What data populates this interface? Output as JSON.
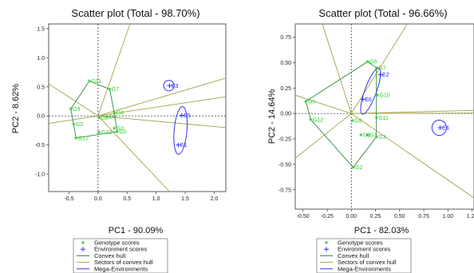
{
  "colors": {
    "genotype": "#33cc33",
    "environment": "#2222ee",
    "hull": "#2a8a3a",
    "sectors": "#a3a24a",
    "mega": "#3333ee",
    "zero_line": "#222222"
  },
  "chart_data": [
    {
      "type": "scatter",
      "title": "Scatter plot (Total - 98.70%)",
      "xlabel": "PC1 - 90.09%",
      "ylabel": "PC2 - 8.62%",
      "xlim": [
        -0.85,
        2.2
      ],
      "ylim": [
        -1.3,
        1.58
      ],
      "xticks": [
        -0.5,
        0.0,
        0.5,
        1.0,
        1.5,
        2.0
      ],
      "yticks": [
        -1.0,
        -0.5,
        0.0,
        0.5,
        1.0,
        1.5
      ],
      "xtick_labels": [
        "-0.5",
        "0.0",
        "0.5",
        "1.0",
        "1.5",
        "2.0"
      ],
      "ytick_labels": [
        "-1.0",
        "-0.5",
        "0.0",
        "0.5",
        "1.0",
        "1.5"
      ],
      "genotypes": [
        {
          "name": "G11",
          "x": -0.15,
          "y": 0.6
        },
        {
          "name": "G7",
          "x": 0.2,
          "y": 0.46
        },
        {
          "name": "G9",
          "x": -0.47,
          "y": 0.12
        },
        {
          "name": "G4",
          "x": 0.28,
          "y": 0.06
        },
        {
          "name": "G6",
          "x": 0.15,
          "y": -0.01
        },
        {
          "name": "G8",
          "x": 0.02,
          "y": -0.03
        },
        {
          "name": "G2",
          "x": -0.42,
          "y": -0.14
        },
        {
          "name": "G3",
          "x": 0.28,
          "y": -0.21
        },
        {
          "name": "G10",
          "x": 0.02,
          "y": -0.28
        },
        {
          "name": "G5",
          "x": 0.33,
          "y": -0.27
        },
        {
          "name": "G12",
          "x": -0.38,
          "y": -0.38
        }
      ],
      "environments": [
        {
          "name": "E3",
          "x": 1.23,
          "y": 0.52
        },
        {
          "name": "E5",
          "x": 1.44,
          "y": 0.01
        },
        {
          "name": "E1",
          "x": 1.38,
          "y": -0.5
        }
      ],
      "hull": [
        "G11",
        "G7",
        "G4",
        "G5",
        "G12",
        "G2",
        "G9"
      ],
      "sector_rays": [
        {
          "x": 0.55,
          "y": 1.58
        },
        {
          "x": 2.2,
          "y": 0.65
        },
        {
          "x": 2.2,
          "y": 0.33
        },
        {
          "x": 2.2,
          "y": -0.2
        },
        {
          "x": 1.23,
          "y": -1.3
        },
        {
          "x": -0.85,
          "y": 0.55
        },
        {
          "x": -0.85,
          "y": -0.13
        }
      ],
      "mega_environments": [
        {
          "cx": 1.22,
          "cy": 0.52,
          "rx": 0.09,
          "ry": 0.09,
          "rot": 0
        },
        {
          "cx": 1.42,
          "cy": -0.25,
          "rx": 0.11,
          "ry": 0.41,
          "rot": 5
        }
      ]
    },
    {
      "type": "scatter",
      "title": "Scatter plot (Total - 96.66%)",
      "xlabel": "PC1 - 82.03%",
      "ylabel": "PC2 - 14.64%",
      "xlim": [
        -0.58,
        1.27
      ],
      "ylim": [
        -0.94,
        0.88
      ],
      "xticks": [
        -0.5,
        -0.25,
        0.0,
        0.25,
        0.5,
        0.75,
        1.0,
        1.25
      ],
      "yticks": [
        -0.75,
        -0.5,
        -0.25,
        0.0,
        0.25,
        0.5,
        0.75
      ],
      "xtick_labels": [
        "-0.50",
        "-0.25",
        "0.00",
        "0.25",
        "0.50",
        "0.75",
        "1.00",
        "1.25"
      ],
      "ytick_labels": [
        "-0.75",
        "-0.50",
        "-0.25",
        "0.00",
        "0.25",
        "0.50",
        "0.75"
      ],
      "genotypes": [
        {
          "name": "G6",
          "x": 0.17,
          "y": 0.51
        },
        {
          "name": "G7",
          "x": 0.26,
          "y": 0.45
        },
        {
          "name": "G5",
          "x": -0.47,
          "y": 0.12
        },
        {
          "name": "G10",
          "x": 0.27,
          "y": 0.18
        },
        {
          "name": "G12",
          "x": -0.42,
          "y": -0.06
        },
        {
          "name": "G11",
          "x": 0.26,
          "y": -0.04
        },
        {
          "name": "G9",
          "x": 0.01,
          "y": -0.07
        },
        {
          "name": "G8",
          "x": 0.1,
          "y": -0.21
        },
        {
          "name": "G1",
          "x": 0.17,
          "y": -0.21
        },
        {
          "name": "G3",
          "x": 0.26,
          "y": -0.23
        },
        {
          "name": "G2",
          "x": 0.02,
          "y": -0.53
        }
      ],
      "environments": [
        {
          "name": "E4",
          "x": 0.92,
          "y": -0.14
        },
        {
          "name": "E2",
          "x": 0.3,
          "y": 0.38
        },
        {
          "name": "E6",
          "x": 0.12,
          "y": 0.14
        }
      ],
      "hull": [
        "G6",
        "G7",
        "G3",
        "G2",
        "G12",
        "G5"
      ],
      "sector_rays": [
        {
          "x": 0.58,
          "y": 0.88
        },
        {
          "x": 1.27,
          "y": 0.03
        },
        {
          "x": 1.27,
          "y": 0.005
        },
        {
          "x": 1.27,
          "y": -0.83
        },
        {
          "x": -0.58,
          "y": 0.18
        },
        {
          "x": -0.58,
          "y": -0.44
        },
        {
          "x": -0.3,
          "y": 0.88
        }
      ],
      "mega_environments": [
        {
          "cx": 0.91,
          "cy": -0.14,
          "rx": 0.075,
          "ry": 0.075,
          "rot": 0
        },
        {
          "cx": 0.2,
          "cy": 0.22,
          "rx": 0.06,
          "ry": 0.24,
          "rot": 20
        }
      ]
    }
  ],
  "legend": [
    {
      "symbol": "star",
      "label": "Genotype scores"
    },
    {
      "symbol": "plus",
      "label": "Environment scores"
    },
    {
      "symbol": "line-hull",
      "label": "Convex hull"
    },
    {
      "symbol": "line-sectors",
      "label": "Sectors of convex hull"
    },
    {
      "symbol": "line-mega",
      "label": "Mega-Environments"
    }
  ]
}
